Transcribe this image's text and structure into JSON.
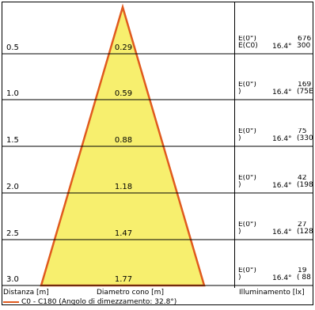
{
  "rows": [
    {
      "distance": "0.5",
      "diameter": "0.29",
      "e_top": "E(0°)",
      "e_bottom": "E(C0)",
      "angle": "16.4°",
      "value": "676",
      "value_sub": "300"
    },
    {
      "distance": "1.0",
      "diameter": "0.59",
      "e_top": "E(0°)",
      "e_bottom": ")",
      "angle": "16.4°",
      "value": "169",
      "value_sub": "(75E"
    },
    {
      "distance": "1.5",
      "diameter": "0.88",
      "e_top": "E(0°)",
      "e_bottom": ")",
      "angle": "16.4°",
      "value": "75",
      "value_sub": "(330"
    },
    {
      "distance": "2.0",
      "diameter": "1.18",
      "e_top": "E(0°)",
      "e_bottom": ")",
      "angle": "16.4°",
      "value": "42",
      "value_sub": "(198"
    },
    {
      "distance": "2.5",
      "diameter": "1.47",
      "e_top": "E(0°)",
      "e_bottom": ")",
      "angle": "16.4°",
      "value": "27",
      "value_sub": "(128"
    },
    {
      "distance": "3.0",
      "diameter": "1.77",
      "e_top": "E(0°)",
      "e_bottom": ")",
      "angle": "16.4°",
      "value": "19",
      "value_sub": "( 88"
    }
  ],
  "axes": {
    "distance_label": "Distanza [m]",
    "diameter_label": "Diametro cono [m]",
    "illuminance_label": "Illuminamento [lx]"
  },
  "legend": {
    "text": "C0 - C180 (Angolo di dimezzamento: 32.8°)"
  },
  "colors": {
    "cone_fill": "#f7ef6e",
    "cone_stroke": "#e05a1e",
    "grid": "#000000"
  }
}
